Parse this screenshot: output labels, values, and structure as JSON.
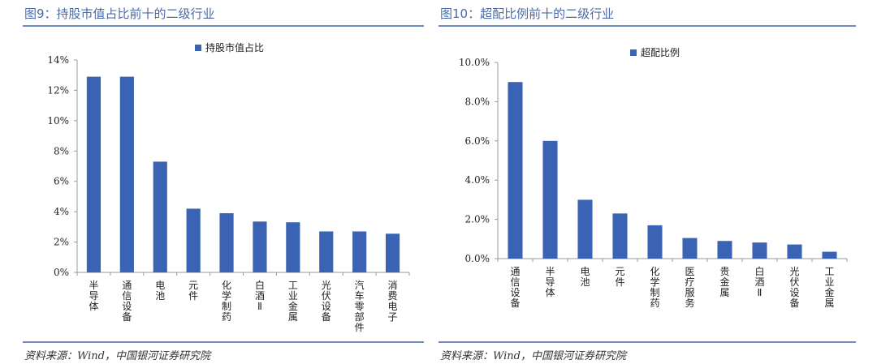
{
  "figures": [
    {
      "title": "图9：持股市值占比前十的二级行业",
      "source": "资料来源：Wind，中国银河证券研究院"
    },
    {
      "title": "图10：超配比例前十的二级行业",
      "source": "资料来源：Wind，中国银河证券研究院"
    }
  ],
  "chart_data": [
    {
      "type": "bar",
      "categories": [
        "半导体",
        "通信设备",
        "电池",
        "元件",
        "化学制药",
        "白酒Ⅱ",
        "工业金属",
        "光伏设备",
        "汽车零部件",
        "消费电子"
      ],
      "series": [
        {
          "name": "持股市值占比",
          "values": [
            12.9,
            12.9,
            7.3,
            4.2,
            3.9,
            3.35,
            3.3,
            2.7,
            2.7,
            2.55
          ],
          "color": "#3a63b4"
        }
      ],
      "ylim": [
        0,
        14
      ],
      "yticks": [
        0,
        2,
        4,
        6,
        8,
        10,
        12,
        14
      ],
      "ytick_labels": [
        "0%",
        "2%",
        "4%",
        "6%",
        "8%",
        "10%",
        "12%",
        "14%"
      ],
      "legend_position": "top-center",
      "grid": false
    },
    {
      "type": "bar",
      "categories": [
        "通信设备",
        "半导体",
        "电池",
        "元件",
        "化学制药",
        "医疗服务",
        "贵金属",
        "白酒Ⅱ",
        "光伏设备",
        "工业金属"
      ],
      "series": [
        {
          "name": "超配比例",
          "values": [
            9.0,
            6.0,
            3.0,
            2.3,
            1.7,
            1.05,
            0.9,
            0.82,
            0.72,
            0.35
          ],
          "color": "#3a63b4"
        }
      ],
      "ylim": [
        0,
        10
      ],
      "yticks": [
        0,
        2,
        4,
        6,
        8,
        10
      ],
      "ytick_labels": [
        "0.0%",
        "2.0%",
        "4.0%",
        "6.0%",
        "8.0%",
        "10.0%"
      ],
      "legend_position": "top-center",
      "grid": false
    }
  ]
}
